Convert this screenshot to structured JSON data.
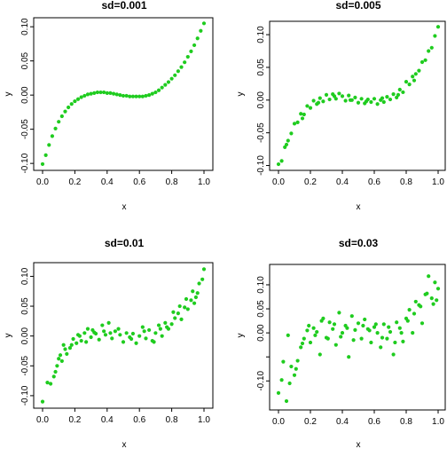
{
  "chart_data": [
    {
      "type": "scatter",
      "title": "sd=0.001",
      "xlabel": "x",
      "ylabel": "y",
      "xlim": [
        0,
        1
      ],
      "ylim": [
        -0.105,
        0.108
      ],
      "xticks": [
        0,
        0.2,
        0.4,
        0.6,
        0.8,
        1
      ],
      "xtick_labels": [
        "0.0",
        "0.2",
        "0.4",
        "0.6",
        "0.8",
        "1.0"
      ],
      "yticks": [
        -0.1,
        -0.05,
        0,
        0.05,
        0.1
      ],
      "ytick_labels": [
        "-0.10",
        "-0.05",
        "0.00",
        "0.05",
        "0.10"
      ],
      "color": "#1fcc1f",
      "x": [
        0.0,
        0.02,
        0.04,
        0.06,
        0.08,
        0.1,
        0.12,
        0.14,
        0.16,
        0.18,
        0.2,
        0.22,
        0.24,
        0.26,
        0.28,
        0.3,
        0.32,
        0.34,
        0.36,
        0.38,
        0.4,
        0.42,
        0.44,
        0.46,
        0.48,
        0.5,
        0.52,
        0.54,
        0.56,
        0.58,
        0.6,
        0.62,
        0.64,
        0.66,
        0.68,
        0.7,
        0.72,
        0.74,
        0.76,
        0.78,
        0.8,
        0.82,
        0.84,
        0.86,
        0.88,
        0.9,
        0.92,
        0.94,
        0.96,
        0.98,
        1.0
      ],
      "y": [
        -0.101,
        -0.088,
        -0.073,
        -0.06,
        -0.049,
        -0.039,
        -0.031,
        -0.024,
        -0.018,
        -0.013,
        -0.009,
        -0.006,
        -0.003,
        -0.001,
        0.001,
        0.002,
        0.003,
        0.004,
        0.004,
        0.004,
        0.003,
        0.003,
        0.002,
        0.001,
        0.0,
        -0.001,
        -0.001,
        -0.002,
        -0.002,
        -0.002,
        -0.002,
        -0.002,
        -0.001,
        0.0,
        0.002,
        0.004,
        0.007,
        0.011,
        0.015,
        0.019,
        0.024,
        0.029,
        0.035,
        0.041,
        0.048,
        0.056,
        0.064,
        0.073,
        0.083,
        0.094,
        0.105
      ]
    },
    {
      "type": "scatter",
      "title": "sd=0.005",
      "xlabel": "x",
      "ylabel": "y",
      "xlim": [
        0,
        1
      ],
      "ylim": [
        -0.102,
        0.115
      ],
      "xticks": [
        0,
        0.2,
        0.4,
        0.6,
        0.8,
        1
      ],
      "xtick_labels": [
        "0.0",
        "0.2",
        "0.4",
        "0.6",
        "0.8",
        "1.0"
      ],
      "yticks": [
        -0.1,
        -0.05,
        0,
        0.05,
        0.1
      ],
      "ytick_labels": [
        "-0.10",
        "-0.05",
        "0.00",
        "0.05",
        "0.10"
      ],
      "color": "#1fcc1f",
      "x": [
        0.0,
        0.02,
        0.04,
        0.06,
        0.08,
        0.1,
        0.12,
        0.14,
        0.16,
        0.18,
        0.2,
        0.22,
        0.24,
        0.26,
        0.28,
        0.3,
        0.32,
        0.34,
        0.36,
        0.38,
        0.4,
        0.42,
        0.44,
        0.46,
        0.48,
        0.5,
        0.52,
        0.54,
        0.56,
        0.58,
        0.6,
        0.62,
        0.64,
        0.66,
        0.68,
        0.7,
        0.72,
        0.74,
        0.76,
        0.78,
        0.8,
        0.82,
        0.84,
        0.86,
        0.88,
        0.9,
        0.92,
        0.94,
        0.96,
        0.98,
        1.0,
        0.05,
        0.15,
        0.25,
        0.35,
        0.45,
        0.55,
        0.65,
        0.75,
        0.85
      ],
      "y": [
        -0.098,
        -0.093,
        -0.072,
        -0.062,
        -0.051,
        -0.036,
        -0.034,
        -0.021,
        -0.022,
        -0.009,
        -0.012,
        -0.001,
        -0.006,
        0.003,
        -0.002,
        0.008,
        0.001,
        0.009,
        0.002,
        0.01,
        0.006,
        -0.001,
        0.007,
        0.0,
        0.004,
        -0.004,
        0.002,
        -0.005,
        0.001,
        -0.003,
        0.002,
        -0.006,
        0.0,
        -0.003,
        0.005,
        0.001,
        0.009,
        0.004,
        0.016,
        0.012,
        0.028,
        0.024,
        0.036,
        0.04,
        0.045,
        0.058,
        0.061,
        0.075,
        0.08,
        0.098,
        0.112,
        -0.068,
        -0.028,
        -0.004,
        0.006,
        0.0,
        -0.002,
        0.003,
        0.008,
        0.03
      ]
    },
    {
      "type": "scatter",
      "title": "sd=0.01",
      "xlabel": "x",
      "ylabel": "y",
      "xlim": [
        0,
        1
      ],
      "ylim": [
        -0.115,
        0.117
      ],
      "xticks": [
        0,
        0.2,
        0.4,
        0.6,
        0.8,
        1
      ],
      "xtick_labels": [
        "0.0",
        "0.2",
        "0.4",
        "0.6",
        "0.8",
        "1.0"
      ],
      "yticks": [
        -0.1,
        -0.05,
        0,
        0.05,
        0.1
      ],
      "ytick_labels": [
        "-0.10",
        "-0.05",
        "0.00",
        "0.05",
        "0.10"
      ],
      "color": "#1fcc1f",
      "x": [
        0.0,
        0.03,
        0.05,
        0.07,
        0.09,
        0.1,
        0.12,
        0.13,
        0.15,
        0.17,
        0.19,
        0.21,
        0.22,
        0.24,
        0.26,
        0.28,
        0.3,
        0.31,
        0.33,
        0.35,
        0.37,
        0.39,
        0.41,
        0.43,
        0.45,
        0.47,
        0.5,
        0.52,
        0.54,
        0.56,
        0.58,
        0.6,
        0.62,
        0.64,
        0.66,
        0.68,
        0.7,
        0.72,
        0.74,
        0.76,
        0.78,
        0.8,
        0.82,
        0.84,
        0.86,
        0.88,
        0.9,
        0.92,
        0.94,
        0.96,
        0.97,
        0.99,
        1.0,
        0.08,
        0.11,
        0.14,
        0.18,
        0.23,
        0.27,
        0.32,
        0.38,
        0.42,
        0.48,
        0.55,
        0.63,
        0.69,
        0.73,
        0.77,
        0.81,
        0.85,
        0.89,
        0.93,
        0.95
      ],
      "y": [
        -0.11,
        -0.078,
        -0.08,
        -0.068,
        -0.05,
        -0.038,
        -0.042,
        -0.015,
        -0.03,
        -0.02,
        -0.005,
        -0.012,
        0.002,
        -0.008,
        0.005,
        0.012,
        -0.002,
        0.01,
        0.004,
        -0.006,
        0.018,
        0.002,
        0.022,
        -0.004,
        0.008,
        0.012,
        -0.01,
        0.005,
        -0.002,
        0.004,
        -0.012,
        0.0,
        0.015,
        -0.004,
        0.01,
        -0.008,
        0.005,
        0.018,
        0.0,
        0.022,
        0.012,
        0.02,
        0.03,
        0.038,
        0.028,
        0.048,
        0.045,
        0.06,
        0.055,
        0.072,
        0.088,
        0.095,
        0.112,
        -0.06,
        -0.032,
        -0.022,
        -0.015,
        0.0,
        -0.01,
        0.006,
        0.008,
        0.005,
        0.002,
        -0.005,
        0.008,
        -0.01,
        0.012,
        0.015,
        0.04,
        0.05,
        0.062,
        0.075,
        0.065
      ]
    },
    {
      "type": "scatter",
      "title": "sd=0.03",
      "xlabel": "x",
      "ylabel": "y",
      "xlim": [
        0,
        1
      ],
      "ylim": [
        -0.153,
        0.135
      ],
      "xticks": [
        0,
        0.2,
        0.4,
        0.6,
        0.8,
        1
      ],
      "xtick_labels": [
        "0.0",
        "0.2",
        "0.4",
        "0.6",
        "0.8",
        "1.0"
      ],
      "yticks": [
        -0.1,
        -0.05,
        0,
        0.05,
        0.1
      ],
      "ytick_labels": [
        "-0.10",
        "",
        "0.00",
        "0.05",
        "0.10"
      ],
      "color": "#1fcc1f",
      "x": [
        0.0,
        0.02,
        0.03,
        0.05,
        0.06,
        0.08,
        0.1,
        0.12,
        0.14,
        0.16,
        0.18,
        0.2,
        0.22,
        0.24,
        0.26,
        0.28,
        0.3,
        0.32,
        0.34,
        0.36,
        0.38,
        0.4,
        0.42,
        0.44,
        0.46,
        0.48,
        0.5,
        0.52,
        0.54,
        0.56,
        0.58,
        0.6,
        0.62,
        0.64,
        0.66,
        0.68,
        0.7,
        0.72,
        0.74,
        0.76,
        0.78,
        0.8,
        0.82,
        0.84,
        0.86,
        0.88,
        0.9,
        0.92,
        0.94,
        0.96,
        0.98,
        1.0,
        0.07,
        0.11,
        0.15,
        0.19,
        0.23,
        0.27,
        0.31,
        0.35,
        0.39,
        0.43,
        0.47,
        0.53,
        0.57,
        0.61,
        0.65,
        0.69,
        0.73,
        0.77,
        0.81,
        0.85,
        0.89,
        0.93,
        0.97,
        0.99
      ],
      "y": [
        -0.125,
        -0.098,
        -0.06,
        -0.142,
        -0.005,
        -0.07,
        -0.088,
        -0.058,
        -0.03,
        -0.012,
        0.005,
        -0.02,
        0.01,
        0.002,
        -0.045,
        0.03,
        -0.01,
        0.022,
        0.008,
        -0.025,
        0.042,
        0.0,
        0.015,
        -0.05,
        0.035,
        0.006,
        0.02,
        -0.012,
        0.028,
        0.008,
        -0.02,
        0.012,
        0.0,
        -0.03,
        0.018,
        -0.012,
        0.002,
        -0.045,
        0.022,
        0.01,
        -0.018,
        0.03,
        0.048,
        0.0,
        0.065,
        0.058,
        0.02,
        0.08,
        0.118,
        0.072,
        0.105,
        0.092,
        -0.105,
        -0.075,
        -0.022,
        0.015,
        -0.005,
        0.025,
        -0.012,
        0.018,
        -0.008,
        0.01,
        -0.015,
        0.015,
        0.005,
        0.018,
        -0.01,
        0.012,
        -0.02,
        0.0,
        0.025,
        0.04,
        0.055,
        0.082,
        0.06,
        0.068
      ]
    }
  ]
}
